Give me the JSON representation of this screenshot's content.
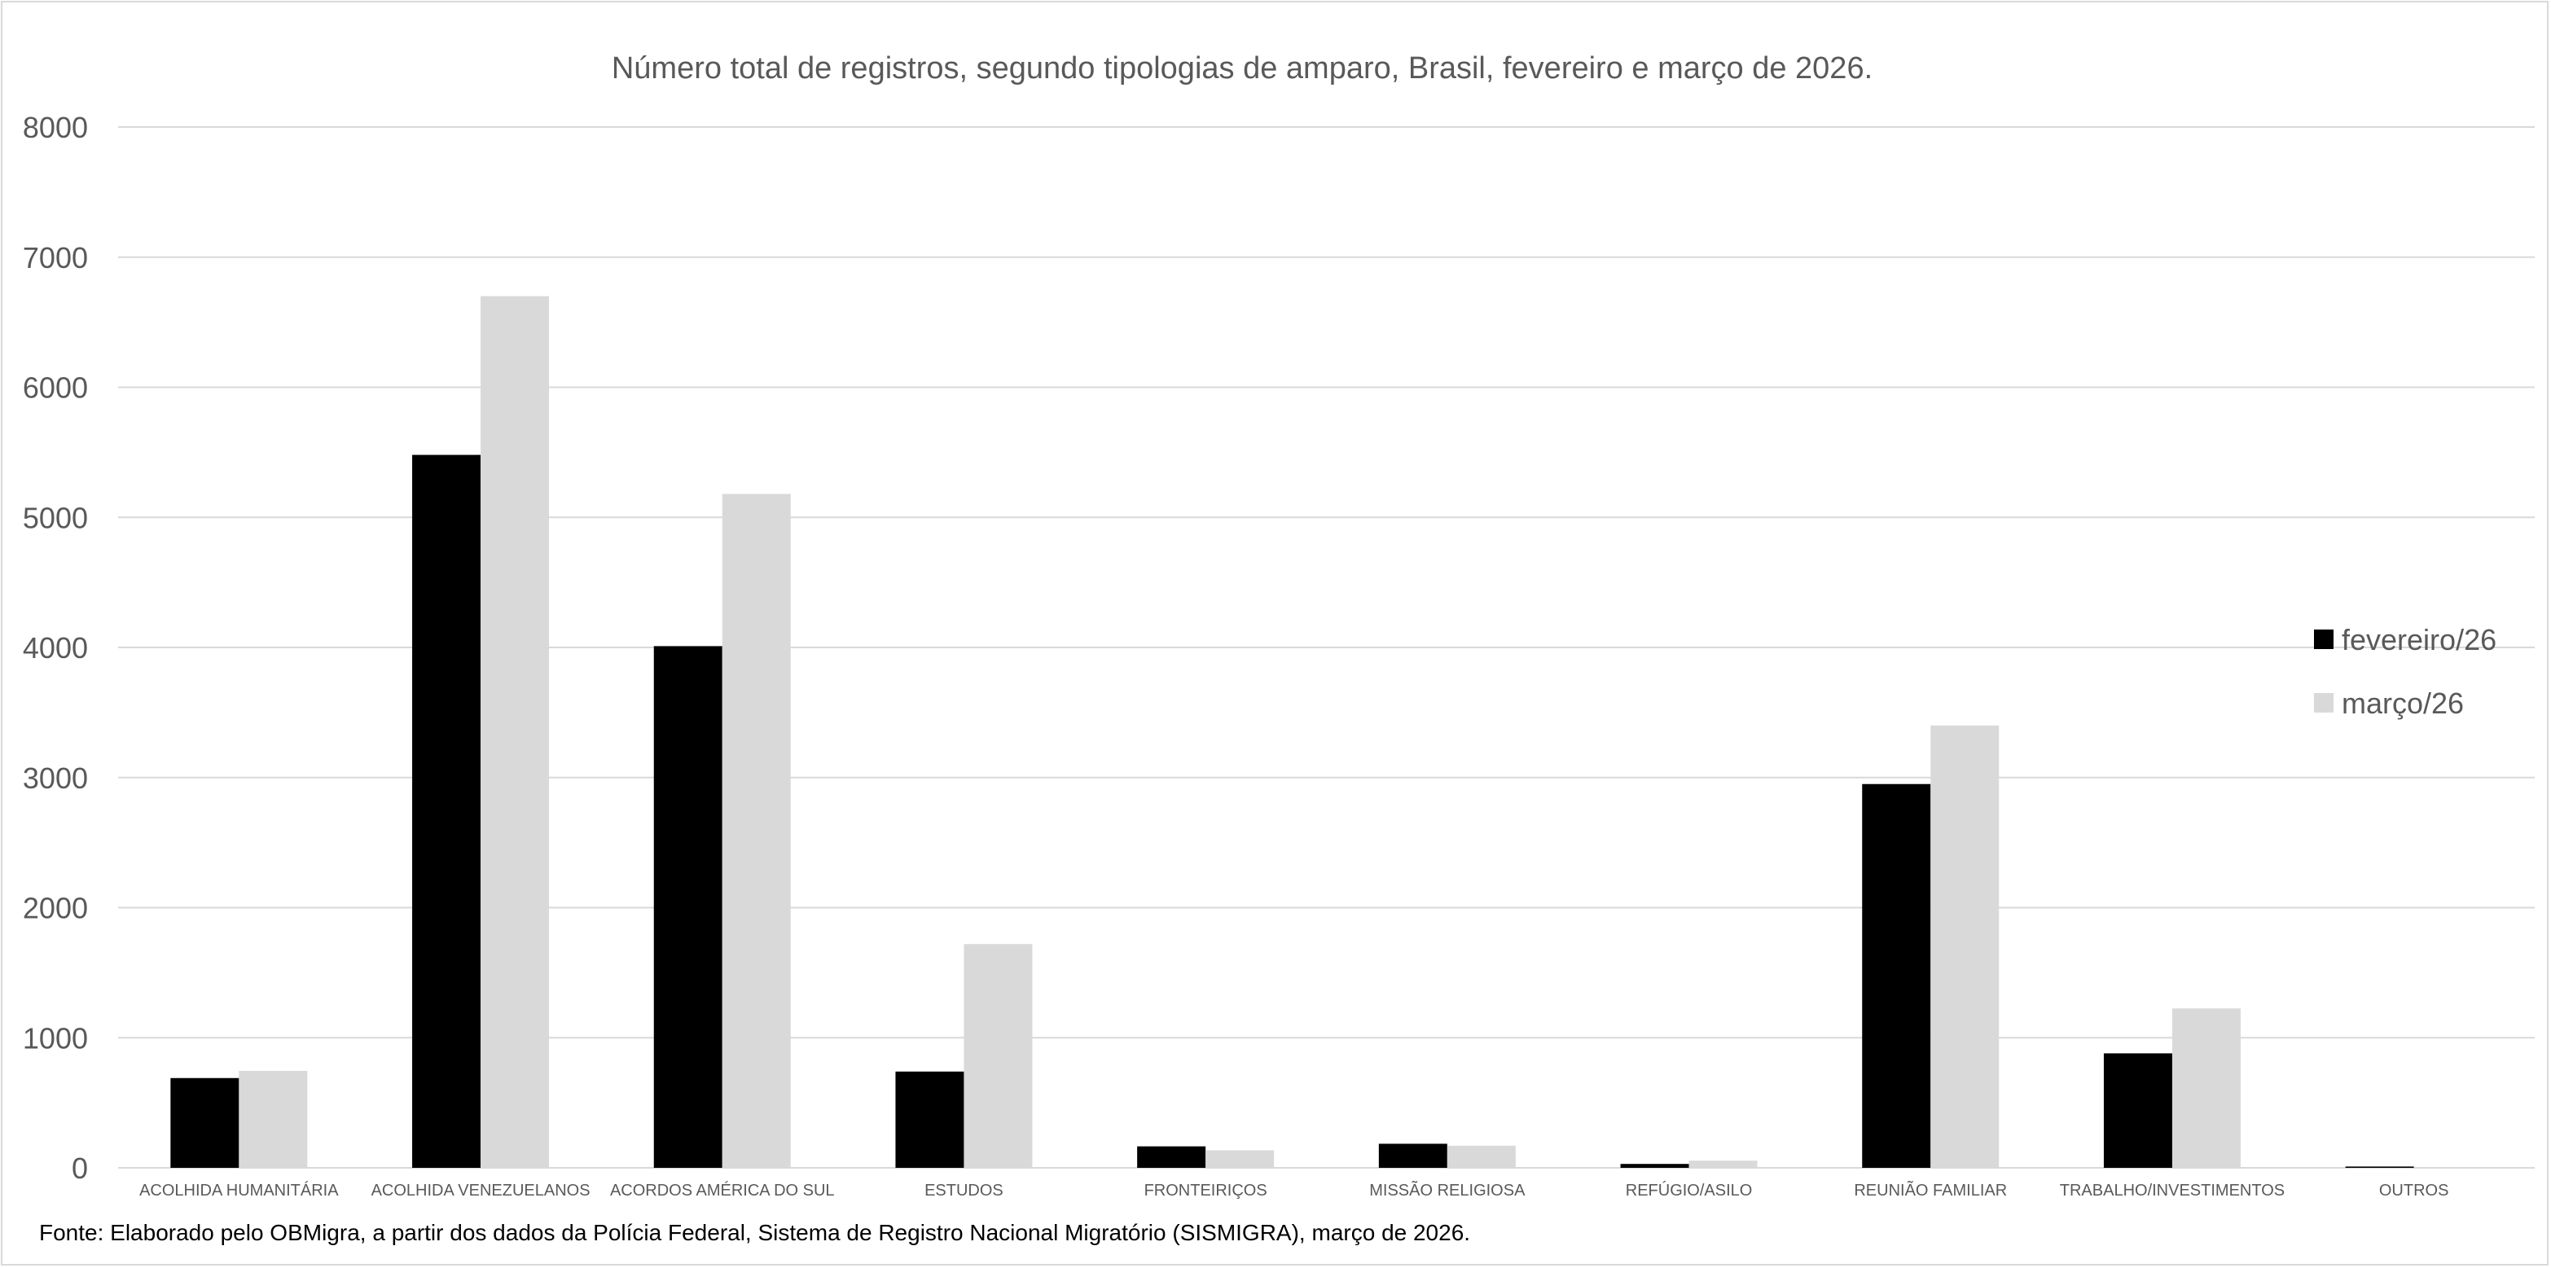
{
  "chart_data": {
    "type": "bar",
    "title": "Número total de registros, segundo tipologias de amparo, Brasil, fevereiro e março de 2026.",
    "categories": [
      "ACOLHIDA HUMANITÁRIA",
      "ACOLHIDA VENEZUELANOS",
      "ACORDOS AMÉRICA DO SUL",
      "ESTUDOS",
      "FRONTEIRIÇOS",
      "MISSÃO RELIGIOSA",
      "REFÚGIO/ASILO",
      "REUNIÃO FAMILIAR",
      "TRABALHO/INVESTIMENTOS",
      "OUTROS"
    ],
    "series": [
      {
        "name": "fevereiro/26",
        "color": "#000000",
        "values": [
          690,
          5480,
          4010,
          740,
          165,
          185,
          30,
          2950,
          880,
          10
        ]
      },
      {
        "name": "março/26",
        "color": "#d9d9d9",
        "values": [
          745,
          6700,
          5180,
          1720,
          135,
          170,
          55,
          3400,
          1225,
          5
        ]
      }
    ],
    "ylim": [
      0,
      8000
    ],
    "yticks": [
      0,
      1000,
      2000,
      3000,
      4000,
      5000,
      6000,
      7000,
      8000
    ],
    "grid": true,
    "legend_position": "right",
    "xlabel": "",
    "ylabel": ""
  },
  "source_note": "Fonte: Elaborado pelo OBMigra, a partir dos dados da Polícia Federal, Sistema de Registro Nacional Migratório (SISMIGRA), março de 2026."
}
